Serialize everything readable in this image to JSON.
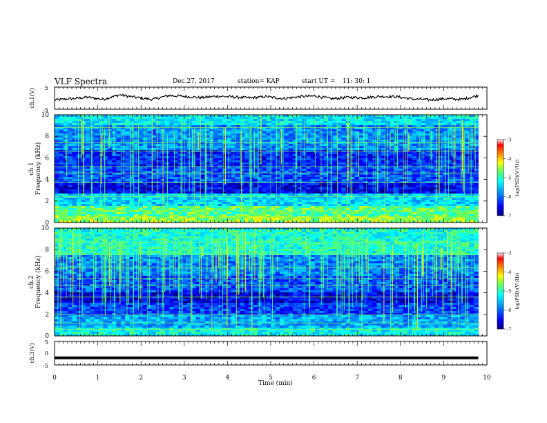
{
  "header": {
    "title": "VLF Spectra",
    "date": "Dec.27, 2017",
    "station": "station= KAP",
    "start_ut_label": "start  UT  =",
    "start_ut_value": "11: 30: 1"
  },
  "colors": {
    "waveform": "#000000",
    "bar": "#000000",
    "colormap": [
      "#000080",
      "#0000ff",
      "#00a0ff",
      "#00ffff",
      "#60ff60",
      "#ffff00",
      "#ff8000",
      "#ff0000",
      "#ffffff"
    ]
  },
  "chart_data": [
    {
      "type": "line",
      "ylabel": "ch.1(V)",
      "ylim": [
        -5,
        5
      ],
      "yticks": [
        "5",
        "-5"
      ],
      "xlim": [
        0,
        10
      ],
      "series_description_values": [
        -0.8,
        -0.3,
        0.4,
        -0.5,
        1.5,
        0.3,
        -0.6,
        1.2,
        0.8,
        0.2,
        0.9,
        0.5,
        0.1,
        0.7,
        -0.2,
        0.6,
        1.0,
        -0.3,
        0.4,
        0.2,
        0.8,
        0.6,
        -0.4,
        -0.8,
        -0.2,
        -0.6,
        1.2
      ]
    },
    {
      "type": "heatmap",
      "ylabel": "ch.1",
      "ylabel2": "Frequency  (kHz)",
      "ylim": [
        0,
        10
      ],
      "yticks": [
        "0",
        "2",
        "4",
        "6",
        "8",
        "10"
      ],
      "colorbar": {
        "label": "log(PSD)(V²/Hz)",
        "ticks": [
          "-3",
          "-4",
          "-5",
          "-6",
          "-7"
        ],
        "range": [
          -7,
          -3
        ]
      }
    },
    {
      "type": "heatmap",
      "ylabel": "ch.2",
      "ylabel2": "Frequency  (kHz)",
      "ylim": [
        0,
        10
      ],
      "yticks": [
        "0",
        "2",
        "4",
        "6",
        "8",
        "10"
      ],
      "colorbar": {
        "label": "log(PSD)(V²/Hz)",
        "ticks": [
          "-3",
          "-4",
          "-5",
          "-6",
          "-7"
        ],
        "range": [
          -7,
          -3
        ]
      }
    },
    {
      "type": "line",
      "ylabel": "ch.3(V)",
      "ylim": [
        -5,
        5
      ],
      "yticks": [
        "5",
        "0",
        "-5"
      ],
      "xlabel": "Time  (min)",
      "xlim": [
        0,
        10
      ],
      "xticks": [
        "0",
        "1",
        "2",
        "3",
        "4",
        "5",
        "6",
        "7",
        "8",
        "9",
        "10"
      ],
      "constant_value": -2
    }
  ]
}
